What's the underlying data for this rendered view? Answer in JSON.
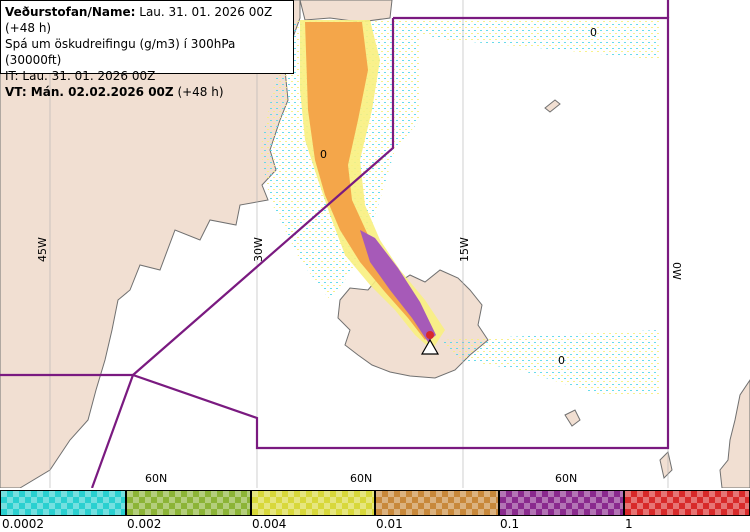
{
  "info": {
    "agency_label": "Veðurstofan/Name:",
    "agency_value": "Lau. 31. 01. 2026 00Z (+48 h)",
    "description": "Spá um öskudreifingu (g/m3) í 300hPa (30000ft)",
    "issue_time": "IT: Lau. 31. 01. 2026 00Z",
    "valid_label": "VT: Mán. 02.02.2026 00Z",
    "valid_suffix": "(+48 h)"
  },
  "map": {
    "longitude_labels": [
      "45W",
      "30W",
      "15W",
      "0W"
    ],
    "latitude_labels": [
      "60N",
      "60N",
      "60N"
    ],
    "contour_labels": [
      "0",
      "0",
      "0"
    ],
    "volcano_marker": "triangle-warning-icon",
    "colors": {
      "land": "#f1dfd2",
      "sea": "#ffffff",
      "coast": "#606060",
      "boundary": "#7a1a80",
      "ash_low": "#f8f080",
      "ash_mid": "#f4a64a",
      "ash_high": "#a65ab8",
      "ash_trace": "#58d8e8"
    }
  },
  "legend": {
    "title_units": "g/m3",
    "ticks": [
      "0.0002",
      "0.002",
      "0.004",
      "0.01",
      "0.1",
      "1"
    ],
    "colors": [
      "#2ad0d0",
      "#8cb436",
      "#d8d83a",
      "#c8883a",
      "#8a2a8e",
      "#d82a2a"
    ]
  }
}
